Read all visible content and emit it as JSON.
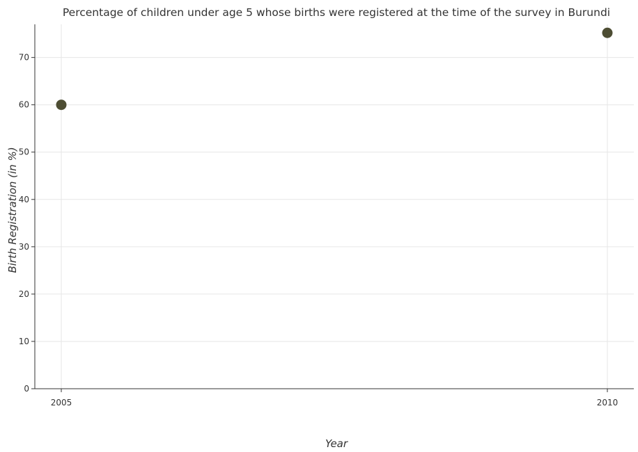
{
  "chart_data": {
    "type": "scatter",
    "title": "Percentage of children under age 5 whose births were registered at the time of the survey in Burundi",
    "xlabel": "Year",
    "ylabel": "Birth Registration (in %)",
    "x": [
      "2005",
      "2010"
    ],
    "y": [
      60,
      75.2
    ],
    "ylim": [
      0,
      77
    ],
    "yticks": [
      0,
      10,
      20,
      30,
      40,
      50,
      60,
      70
    ],
    "grid": true,
    "legend": "none",
    "marker_color": "#4d4d33"
  }
}
